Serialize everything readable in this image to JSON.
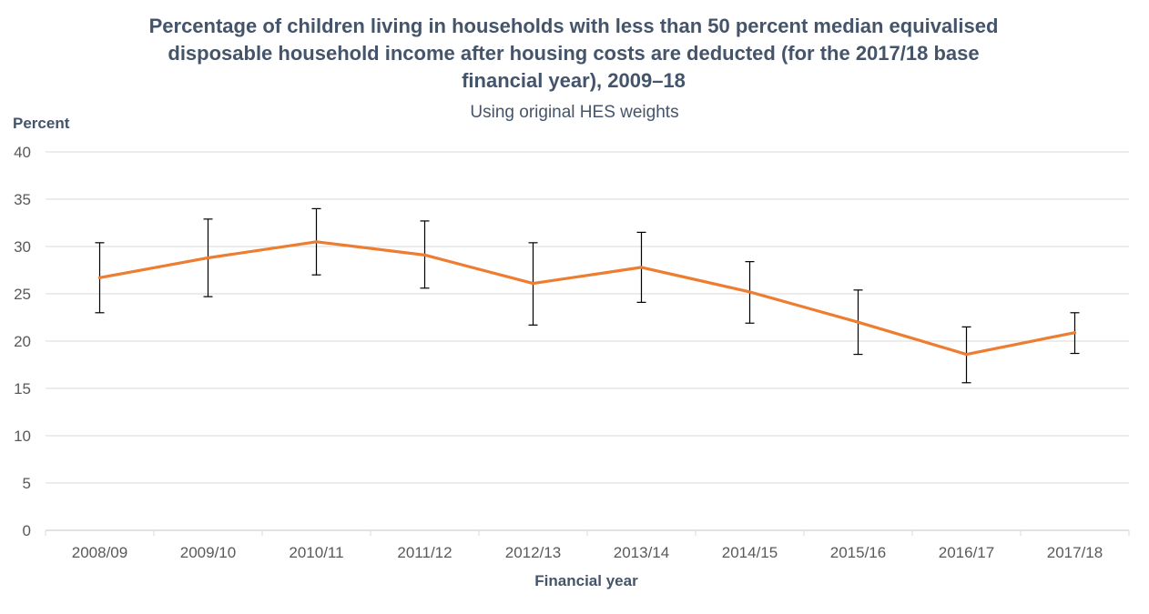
{
  "chart_data": {
    "type": "line",
    "title": "Percentage of children living in households with less than 50 percent median equivalised disposable household income after housing costs are deducted (for the 2017/18 base financial year), 2009–18",
    "subtitle": "Using original HES weights",
    "xlabel": "Financial year",
    "ylabel": "Percent",
    "ylim": [
      0,
      40
    ],
    "yticks": [
      "0",
      "5",
      "10",
      "15",
      "20",
      "25",
      "30",
      "35",
      "40"
    ],
    "grid": true,
    "categories": [
      "2008/09",
      "2009/10",
      "2010/11",
      "2011/12",
      "2012/13",
      "2013/14",
      "2014/15",
      "2015/16",
      "2016/17",
      "2017/18"
    ],
    "series": [
      {
        "values": [
          26.7,
          28.8,
          30.5,
          29.1,
          26.1,
          27.8,
          25.2,
          22.0,
          18.6,
          20.9
        ],
        "error_low": [
          23.0,
          24.7,
          27.0,
          25.6,
          21.7,
          24.1,
          21.9,
          18.6,
          15.6,
          18.7
        ],
        "error_high": [
          30.4,
          32.9,
          34.0,
          32.7,
          30.4,
          31.5,
          28.4,
          25.4,
          21.5,
          23.0
        ]
      }
    ],
    "colors": {
      "line": "#ed7d31",
      "grid": "#d9d9d9",
      "axis": "#d9d9d9",
      "error_bar": "#000000"
    }
  }
}
